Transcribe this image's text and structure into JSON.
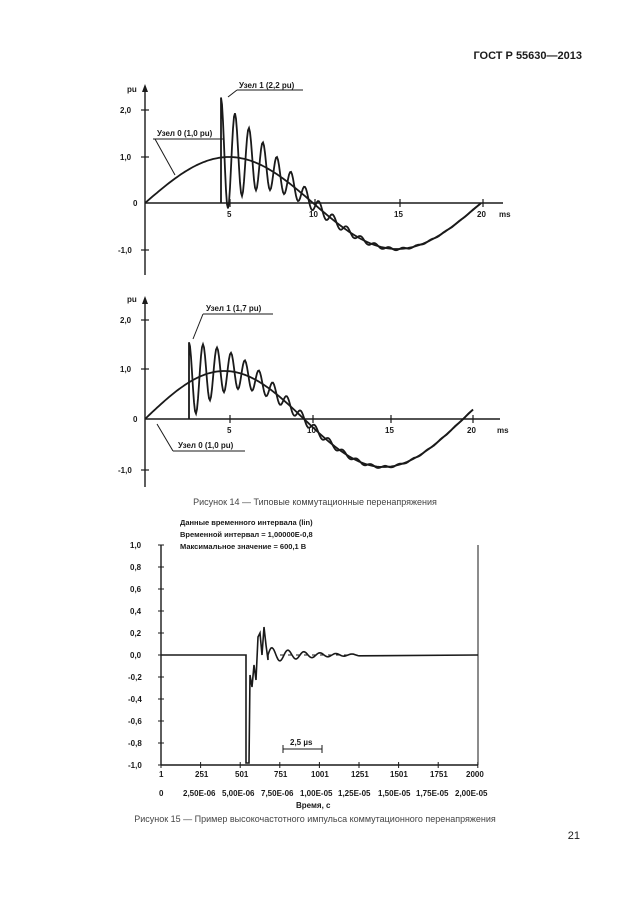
{
  "header": {
    "doc_code": "ГОСТ Р 55630—2013"
  },
  "figure14": {
    "caption": "Рисунок 14 — Типовые коммутационные перенапряжения",
    "top_plot": {
      "y_unit": "pu",
      "x_unit": "ms",
      "y_ticks": [
        "2,0",
        "1,0",
        "0",
        "-1,0"
      ],
      "x_ticks": [
        "5",
        "10",
        "15",
        "20"
      ],
      "annotation_node1": "Узел 1 (2,2 pu)",
      "annotation_node0": "Узел 0 (1,0 pu)"
    },
    "bottom_plot": {
      "y_unit": "pu",
      "x_unit": "ms",
      "y_ticks": [
        "2,0",
        "1,0",
        "0",
        "-1,0"
      ],
      "x_ticks": [
        "5",
        "10",
        "15",
        "20"
      ],
      "annotation_node1": "Узел 1 (1,7 pu)",
      "annotation_node0": "Узел 0 (1,0 pu)"
    }
  },
  "figure15": {
    "caption": "Рисунок 15 — Пример высокочастотного импульса коммутационного перенапряжения",
    "header_lines": [
      "Данные временного интервала (lin)",
      "Временной интервал = 1,00000E-0,8",
      "Максимальное значение = 600,1 В"
    ],
    "y_ticks": [
      "1,0",
      "0,8",
      "0,6",
      "0,4",
      "0,2",
      "0,0",
      "-0,2",
      "-0,4",
      "-0,6",
      "-0,8",
      "-1,0"
    ],
    "x_ticks_samples": [
      "1",
      "251",
      "501",
      "751",
      "1001",
      "1251",
      "1501",
      "1751",
      "2000"
    ],
    "x_ticks_time": [
      "0",
      "2,50E-06",
      "5,00E-06",
      "7,50E-06",
      "1,00E-05",
      "1,25E-05",
      "1,50E-05",
      "1,75E-05",
      "2,00E-05"
    ],
    "x_label": "Время, с",
    "scale_bar_label": "2,5 µs"
  },
  "page_number": "21"
}
